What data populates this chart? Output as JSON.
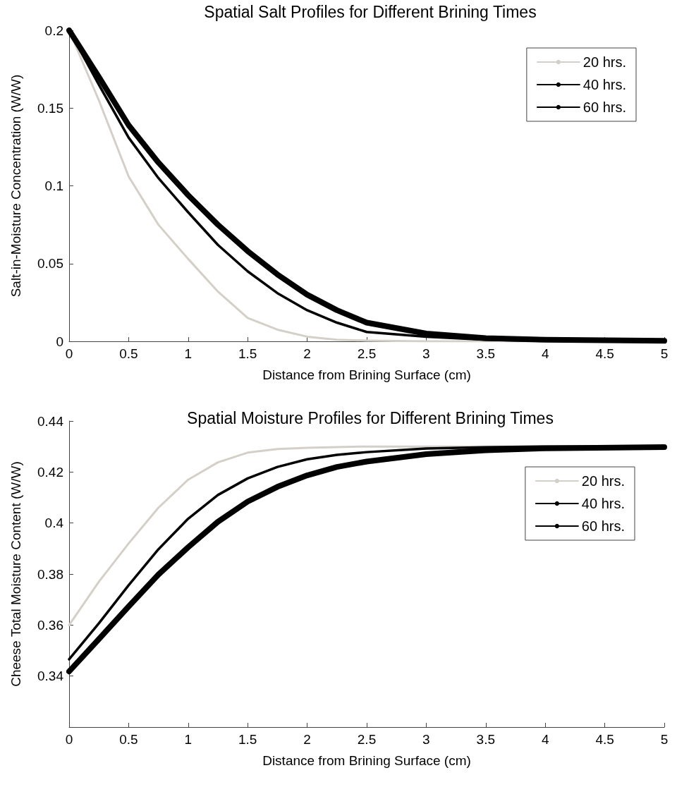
{
  "chart_data": [
    {
      "type": "line",
      "title": "Spatial Salt Profiles for Different Brining Times",
      "xlabel": "Distance from Brining Surface (cm)",
      "ylabel": "Salt-in-Moisture Concentration (W/W)",
      "x": [
        0,
        0.25,
        0.5,
        0.75,
        1,
        1.25,
        1.5,
        1.75,
        2,
        2.25,
        2.5,
        3,
        3.5,
        4,
        5
      ],
      "xlim": [
        0,
        5
      ],
      "xticks": [
        0,
        0.5,
        1,
        1.5,
        2,
        2.5,
        3,
        3.5,
        4,
        4.5,
        5
      ],
      "ylim": [
        0,
        0.2
      ],
      "yticks": [
        0,
        0.05,
        0.1,
        0.15,
        0.2
      ],
      "grid": false,
      "legend": "top right",
      "series": [
        {
          "name": "20 hrs.",
          "color": "#d4d0c8",
          "values": [
            0.2,
            0.155,
            0.106,
            0.075,
            0.053,
            0.032,
            0.015,
            0.0075,
            0.003,
            0.001,
            0.0005,
            0,
            0,
            0,
            0
          ]
        },
        {
          "name": "40 hrs.",
          "color": "#000000",
          "values": [
            0.2,
            0.165,
            0.131,
            0.105,
            0.083,
            0.062,
            0.045,
            0.031,
            0.02,
            0.012,
            0.006,
            0.003,
            0.001,
            0.0003,
            0
          ]
        },
        {
          "name": "60 hrs.",
          "color": "#000000",
          "values": [
            0.2,
            0.17,
            0.139,
            0.115,
            0.094,
            0.075,
            0.058,
            0.043,
            0.03,
            0.02,
            0.012,
            0.005,
            0.002,
            0.001,
            0.0003
          ]
        }
      ]
    },
    {
      "type": "line",
      "title": "Spatial Moisture Profiles for Different Brining Times",
      "xlabel": "Distance from Brining Surface (cm)",
      "ylabel": "Cheese Total Moisture Content (W/W)",
      "x": [
        0,
        0.25,
        0.5,
        0.75,
        1,
        1.25,
        1.5,
        1.75,
        2,
        2.25,
        2.5,
        3,
        3.5,
        4,
        5
      ],
      "xlim": [
        0,
        5
      ],
      "xticks": [
        0,
        0.5,
        1,
        1.5,
        2,
        2.5,
        3,
        3.5,
        4,
        4.5,
        5
      ],
      "ylim": [
        0.32,
        0.44
      ],
      "yticks": [
        0.34,
        0.36,
        0.38,
        0.4,
        0.42,
        0.44
      ],
      "grid": false,
      "legend": "top right",
      "series": [
        {
          "name": "20 hrs.",
          "color": "#d4d0c8",
          "values": [
            0.36,
            0.377,
            0.392,
            0.406,
            0.417,
            0.4238,
            0.4276,
            0.429,
            0.4295,
            0.4298,
            0.43,
            0.43,
            null,
            null,
            0.43
          ]
        },
        {
          "name": "40 hrs.",
          "color": "#000000",
          "values": [
            0.3466,
            0.3607,
            0.3756,
            0.3897,
            0.4017,
            0.411,
            0.4175,
            0.422,
            0.425,
            0.4267,
            0.4278,
            0.4292,
            0.4297,
            0.43,
            0.43
          ]
        },
        {
          "name": "60 hrs.",
          "color": "#000000",
          "values": [
            0.3418,
            0.3545,
            0.3673,
            0.3798,
            0.3905,
            0.4005,
            0.4084,
            0.4142,
            0.4187,
            0.422,
            0.4241,
            0.427,
            0.4285,
            0.4293,
            0.4298
          ]
        }
      ]
    }
  ]
}
